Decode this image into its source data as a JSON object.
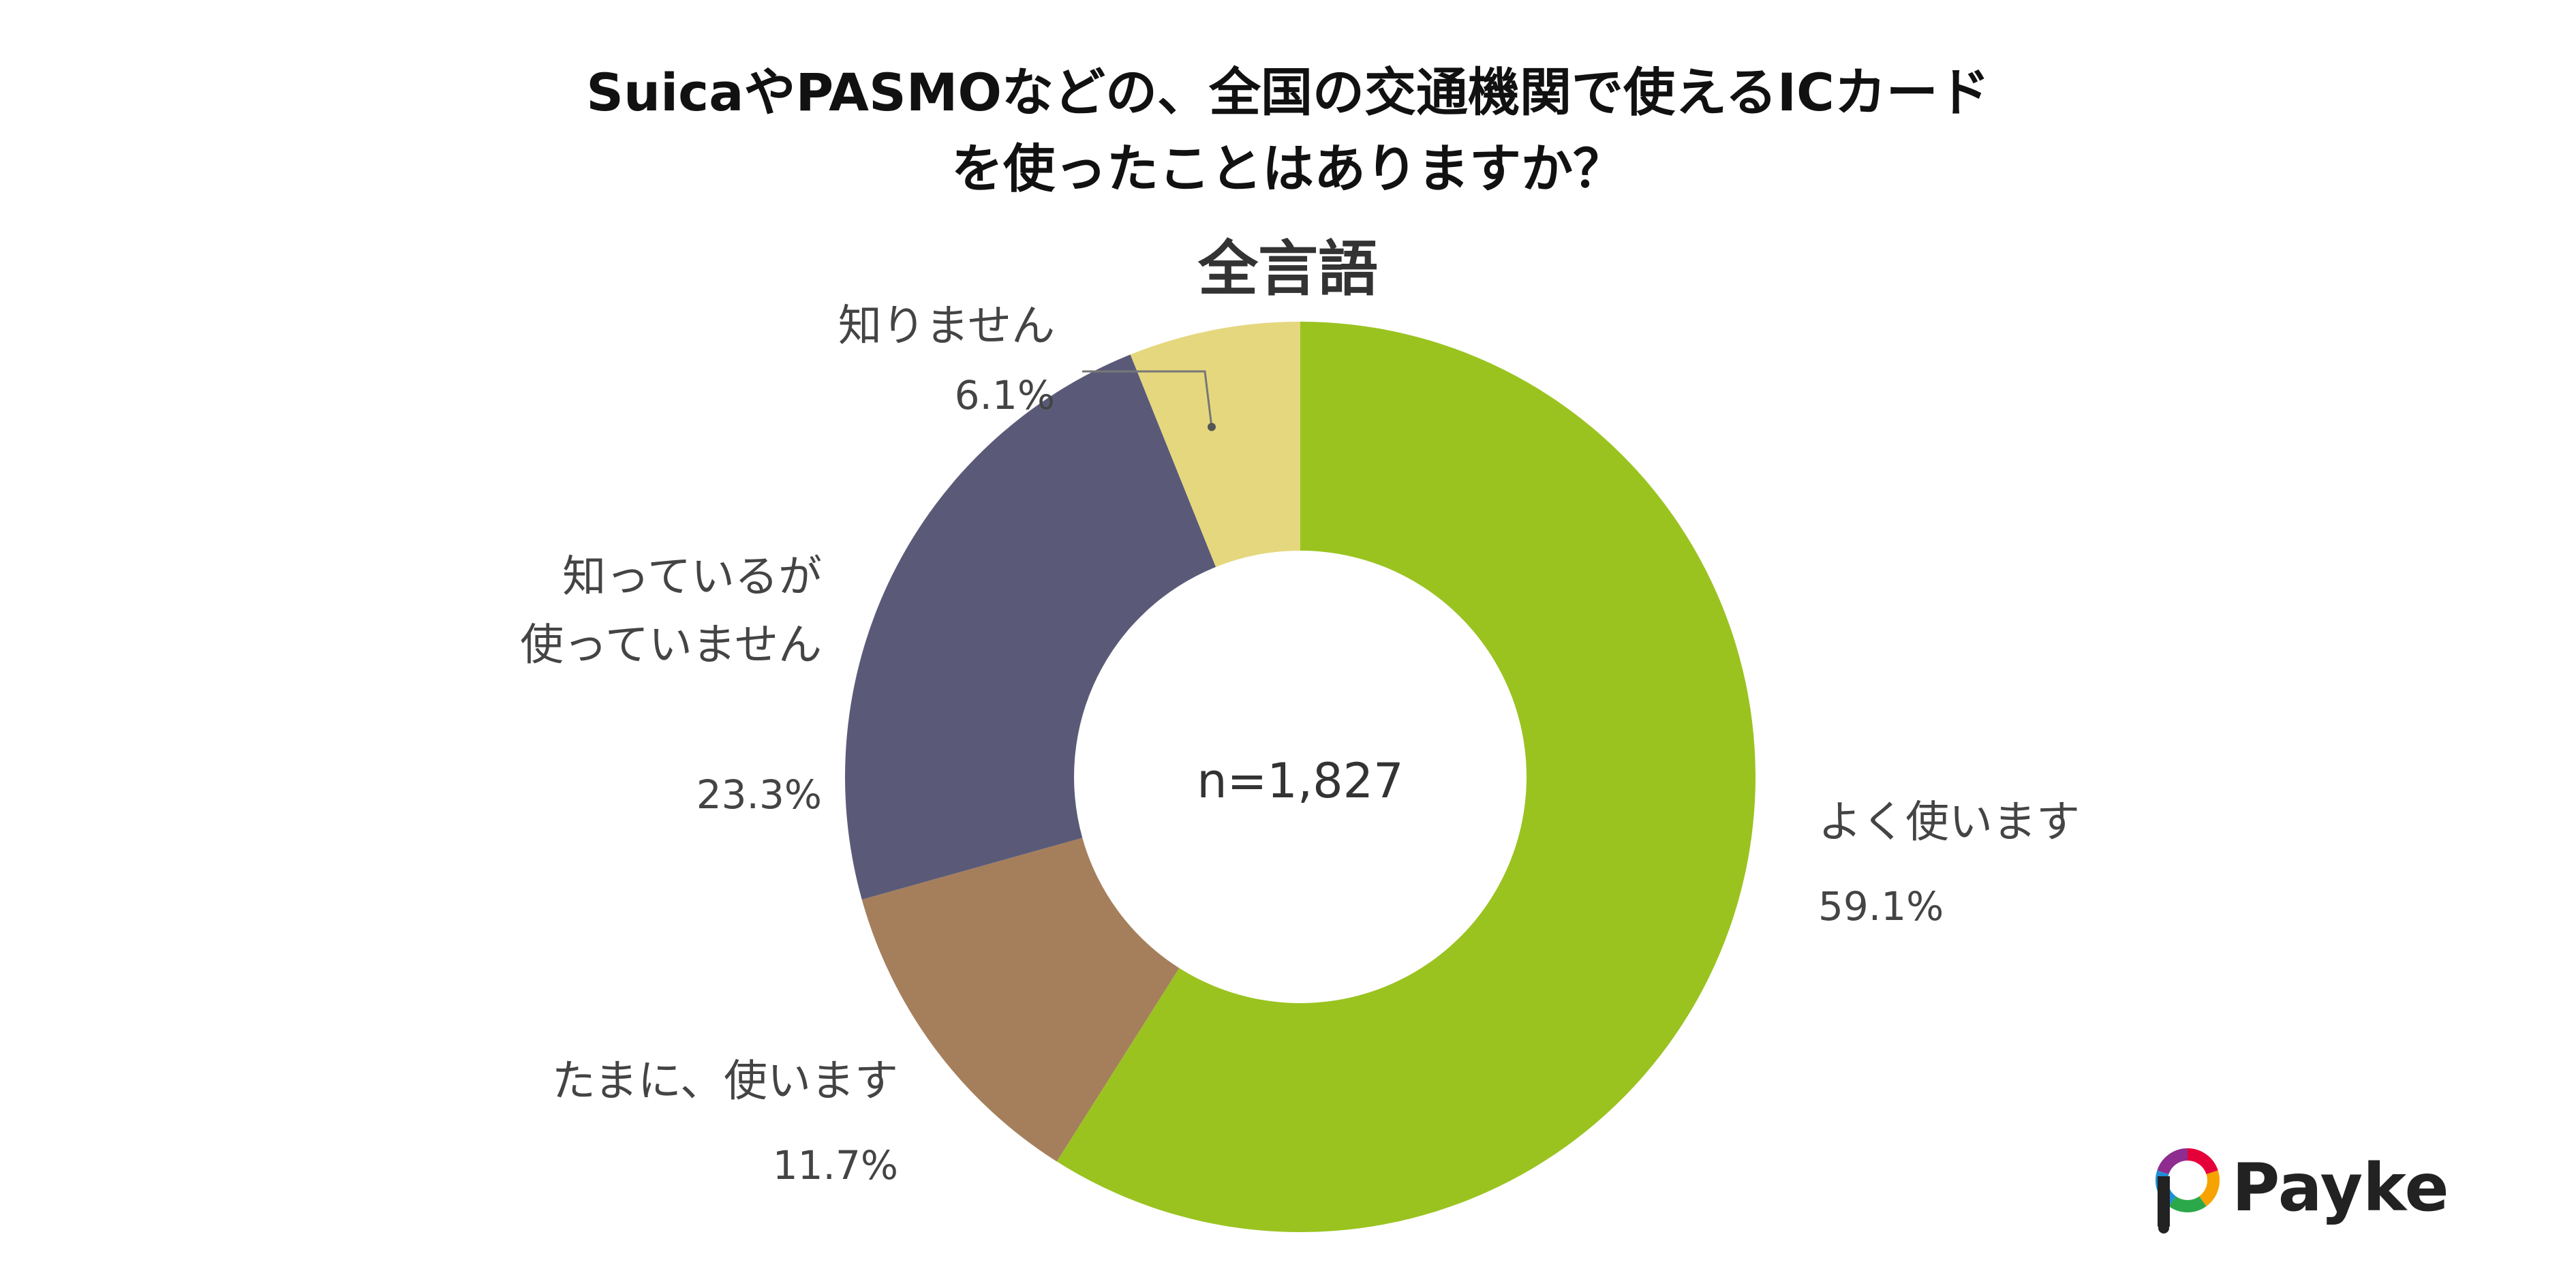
{
  "chart_data": {
    "type": "pie",
    "title": [
      "SuicaやPASMOなどの、全国の交通機関で使えるICカード",
      "を使ったことはありますか？"
    ],
    "subtitle": "全言語",
    "center_label": "n=1,827",
    "slices": [
      {
        "label": [
          "よく使います"
        ],
        "value": 59.1,
        "value_label": "59.1%",
        "color": "#9AC320"
      },
      {
        "label": [
          "たまに、使います"
        ],
        "value": 11.7,
        "value_label": "11.7%",
        "color": "#A57F5C"
      },
      {
        "label": [
          "知っているが",
          "使っていません"
        ],
        "value": 23.3,
        "value_label": "23.3%",
        "color": "#5A5A78"
      },
      {
        "label": [
          "知りません"
        ],
        "value": 6.1,
        "value_label": "6.1%",
        "color": "#E5D77E"
      }
    ]
  },
  "brand": {
    "name": "Payke",
    "logo_colors": [
      "#E6003A",
      "#F6A300",
      "#2BA84A",
      "#1D8FD6",
      "#8E2D8F"
    ]
  }
}
